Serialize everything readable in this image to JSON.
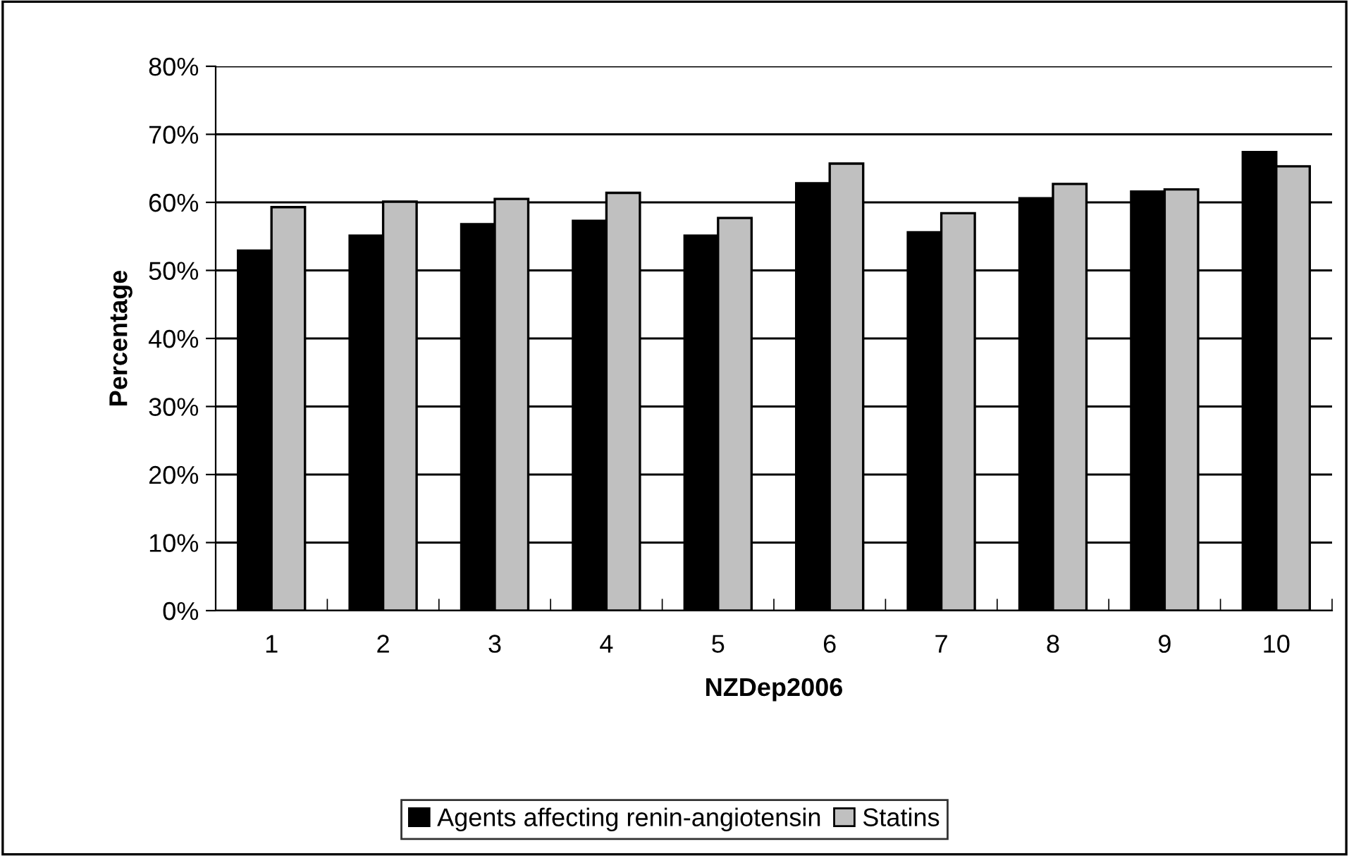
{
  "chart_data": {
    "type": "bar",
    "xlabel": "NZDep2006",
    "ylabel": "Percentage",
    "categories": [
      "1",
      "2",
      "3",
      "4",
      "5",
      "6",
      "7",
      "8",
      "9",
      "10"
    ],
    "series": [
      {
        "name": "Agents affecting renin-angiotensin",
        "color": "#000000",
        "values": [
          52.9,
          55.1,
          56.8,
          57.3,
          55.1,
          62.8,
          55.6,
          60.6,
          61.6,
          67.4
        ]
      },
      {
        "name": "Statins",
        "color": "#c0c0c0",
        "values": [
          59.3,
          60.1,
          60.5,
          61.4,
          57.7,
          65.7,
          58.4,
          62.7,
          61.9,
          65.3
        ]
      }
    ],
    "ylim": [
      0,
      80
    ],
    "yticks": [
      {
        "value": 0,
        "label": "0%"
      },
      {
        "value": 10,
        "label": "10%"
      },
      {
        "value": 20,
        "label": "20%"
      },
      {
        "value": 30,
        "label": "30%"
      },
      {
        "value": 40,
        "label": "40%"
      },
      {
        "value": 50,
        "label": "50%"
      },
      {
        "value": 60,
        "label": "60%"
      },
      {
        "value": 70,
        "label": "70%"
      },
      {
        "value": 80,
        "label": "80%"
      }
    ],
    "grid": "y",
    "legend": "bottom"
  }
}
